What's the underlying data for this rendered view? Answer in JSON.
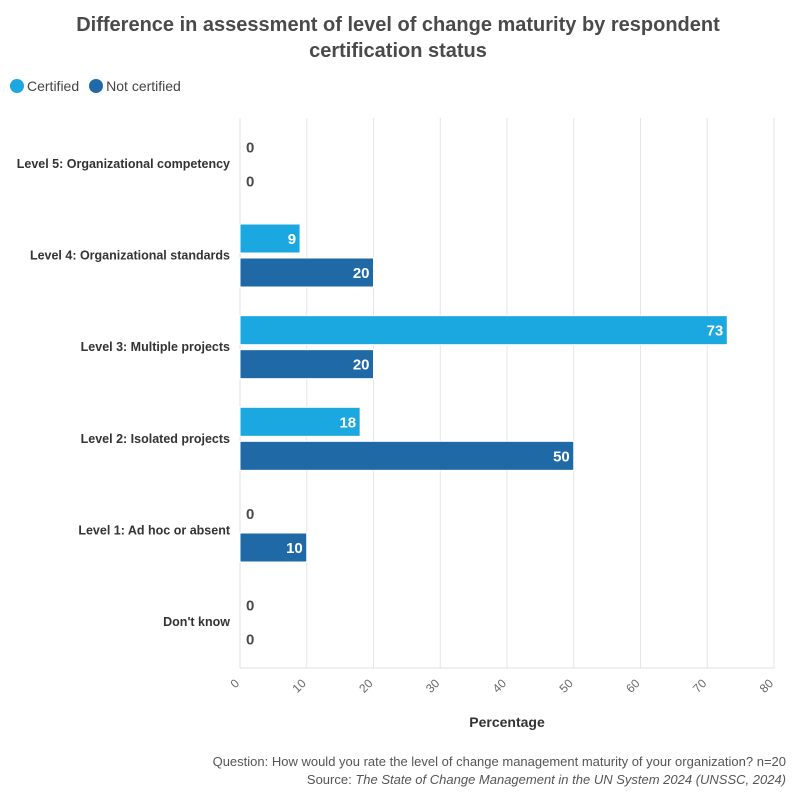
{
  "chart_data": {
    "type": "bar",
    "orientation": "horizontal",
    "title_line1": "Difference in assessment of level of change maturity by respondent",
    "title_line2": "certification status",
    "categories": [
      "Level 5: Organizational competency",
      "Level 4: Organizational standards",
      "Level 3: Multiple projects",
      "Level 2: Isolated projects",
      "Level 1: Ad hoc or absent",
      "Don't know"
    ],
    "series": [
      {
        "name": "Certified",
        "color": "#1ba8e0",
        "values": [
          0,
          9,
          73,
          18,
          0,
          0
        ]
      },
      {
        "name": "Not certified",
        "color": "#1f6aa6",
        "values": [
          0,
          20,
          20,
          50,
          10,
          0
        ]
      }
    ],
    "xlabel": "Percentage",
    "ylabel": "",
    "xlim": [
      0,
      80
    ],
    "xticks": [
      "0",
      "10",
      "20",
      "30",
      "40",
      "50",
      "60",
      "70",
      "80"
    ],
    "grid": true,
    "legend_position": "top-left"
  },
  "footer": {
    "question": "Question: How would you rate the level of change management maturity of your organization? n=20",
    "source_prefix": "Source: ",
    "source_title": "The State of Change Management in the UN System 2024 (UNSSC, 2024)"
  }
}
